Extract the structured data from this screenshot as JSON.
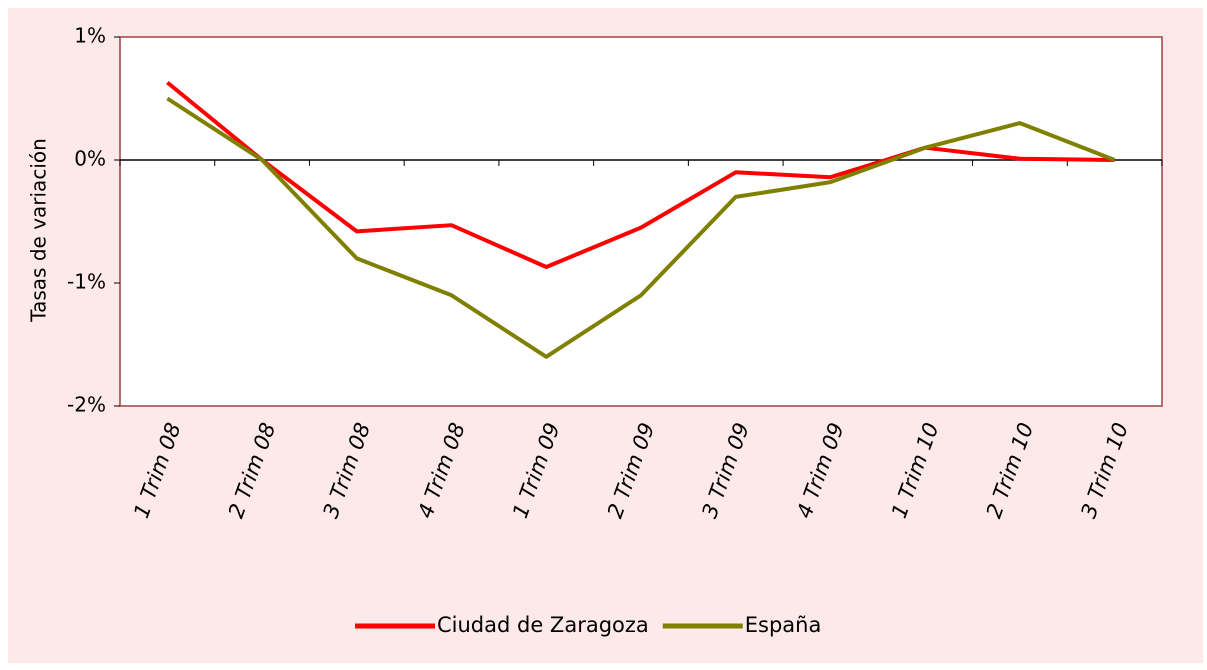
{
  "chart_data": {
    "type": "line",
    "y_label": "Tasas de variación",
    "categories": [
      "1 Trim 08",
      "2 Trim 08",
      "3 Trim 08",
      "4 Trim 08",
      "1 Trim 09",
      "2 Trim 09",
      "3 Trim 09",
      "4 Trim 09",
      "1 Trim 10",
      "2 Trim 10",
      "3 Trim 10"
    ],
    "series": [
      {
        "name": "Ciudad de Zaragoza",
        "color": "#ff0000",
        "values": [
          0.63,
          0,
          -0.58,
          -0.53,
          -0.87,
          -0.55,
          -0.1,
          -0.14,
          0.1,
          0.01,
          0
        ]
      },
      {
        "name": "España",
        "color": "#808000",
        "values": [
          0.5,
          0,
          -0.8,
          -1.1,
          -1.6,
          -1.1,
          -0.3,
          -0.18,
          0.1,
          0.3,
          0
        ]
      }
    ],
    "ylim": [
      -2,
      1
    ],
    "yticks": [
      {
        "value": -2,
        "label": "-2%"
      },
      {
        "value": -1,
        "label": "-1%"
      },
      {
        "value": 0,
        "label": "0%"
      },
      {
        "value": 1,
        "label": "1%"
      }
    ],
    "legend": "bottom"
  }
}
